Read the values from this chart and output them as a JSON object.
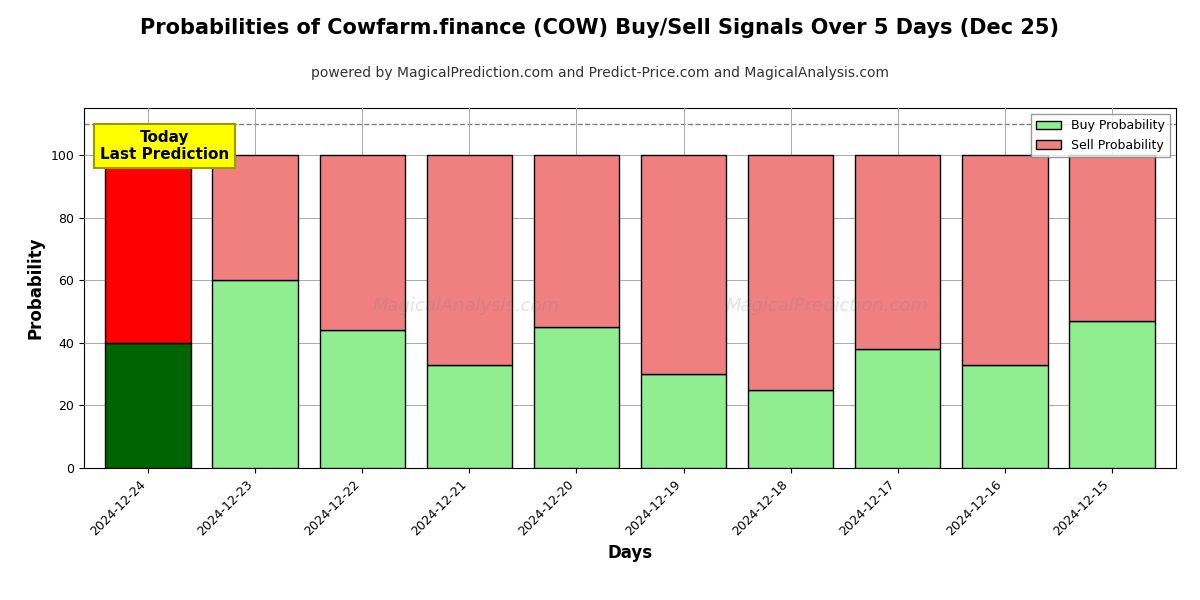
{
  "title": "Probabilities of Cowfarm.finance (COW) Buy/Sell Signals Over 5 Days (Dec 25)",
  "subtitle": "powered by MagicalPrediction.com and Predict-Price.com and MagicalAnalysis.com",
  "xlabel": "Days",
  "ylabel": "Probability",
  "watermark_line1": "MagicalAnalysis.com",
  "watermark_line2": "MagicalPrediction.com",
  "categories": [
    "2024-12-24",
    "2024-12-23",
    "2024-12-22",
    "2024-12-21",
    "2024-12-20",
    "2024-12-19",
    "2024-12-18",
    "2024-12-17",
    "2024-12-16",
    "2024-12-15"
  ],
  "buy_values": [
    40,
    60,
    44,
    33,
    45,
    30,
    25,
    38,
    33,
    47
  ],
  "sell_values": [
    60,
    40,
    56,
    67,
    55,
    70,
    75,
    62,
    67,
    53
  ],
  "today_bar_buy_color": "#006400",
  "today_bar_sell_color": "#FF0000",
  "other_bar_buy_color": "#90EE90",
  "other_bar_sell_color": "#F08080",
  "bar_edge_color": "#000000",
  "today_label_bg": "#FFFF00",
  "today_label_text": "Today\nLast Prediction",
  "legend_buy_label": "Buy Probability",
  "legend_sell_label": "Sell Probability",
  "ylim": [
    0,
    115
  ],
  "yticks": [
    0,
    20,
    40,
    60,
    80,
    100
  ],
  "dashed_line_y": 110,
  "background_color": "#FFFFFF",
  "grid_color": "#AAAAAA",
  "title_fontsize": 15,
  "subtitle_fontsize": 10,
  "axis_label_fontsize": 12,
  "tick_fontsize": 9,
  "bar_width": 0.8
}
